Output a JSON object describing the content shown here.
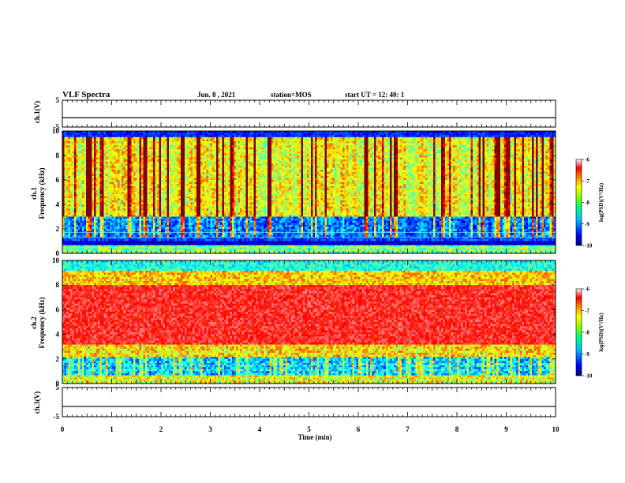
{
  "header": {
    "title": "VLF Spectra",
    "date": "Jun. 8 , 2021",
    "station": "station=MOS",
    "start": "start UT =  12: 40: 1"
  },
  "chart_data": [
    {
      "type": "line",
      "name": "ch1-waveform",
      "ylabel": "ch.1(V)",
      "ylim": [
        -5,
        5
      ],
      "y_ticks": [
        "5",
        "-5"
      ],
      "baseline": -1.5
    },
    {
      "type": "heatmap",
      "name": "ch1-spectrogram",
      "ylabel": "ch.1\nFrequency (kHz)",
      "ylim": [
        0,
        10
      ],
      "y_ticks": [
        "0",
        "2",
        "4",
        "6",
        "8",
        "10"
      ],
      "colorbar": {
        "label": "log(PSD)(V²/Hz)",
        "range": [
          -10,
          -6
        ],
        "ticks": [
          "-6",
          "-7",
          "-8",
          "-9",
          "-10"
        ]
      }
    },
    {
      "type": "heatmap",
      "name": "ch2-spectrogram",
      "ylabel": "ch.2\nFrequency (kHz)",
      "ylim": [
        0,
        10
      ],
      "y_ticks": [
        "0",
        "2",
        "4",
        "6",
        "8",
        "10"
      ],
      "colorbar": {
        "label": "log(PSD)(V²/Hz)",
        "range": [
          -10,
          -6
        ],
        "ticks": [
          "-6",
          "-7",
          "-8",
          "-9",
          "-10"
        ]
      }
    },
    {
      "type": "line",
      "name": "ch3-waveform",
      "ylabel": "ch.3(V)",
      "ylim": [
        -5,
        5
      ],
      "y_ticks": [
        "5",
        "-5"
      ],
      "baseline": -1.5
    }
  ],
  "x_axis": {
    "label": "Time (min)",
    "xlim": [
      0,
      10
    ],
    "ticks": [
      "0",
      "1",
      "2",
      "3",
      "4",
      "5",
      "6",
      "7",
      "8",
      "9",
      "10"
    ]
  },
  "ylabels": {
    "ch1_wave": "ch.1(V)",
    "ch1_spec_a": "ch.1",
    "ch1_spec_b": "Frequency (kHz)",
    "ch2_spec_a": "ch.2",
    "ch2_spec_b": "Frequency (kHz)",
    "ch3_wave": "ch.3(V)"
  },
  "colorbar_label": "log(PSD)(V²/Hz)",
  "colors": {
    "jet": [
      "#00007f",
      "#0000ff",
      "#007fff",
      "#00ffff",
      "#7fff7f",
      "#ffff00",
      "#ff7f00",
      "#ff0000",
      "#7f0000"
    ]
  }
}
